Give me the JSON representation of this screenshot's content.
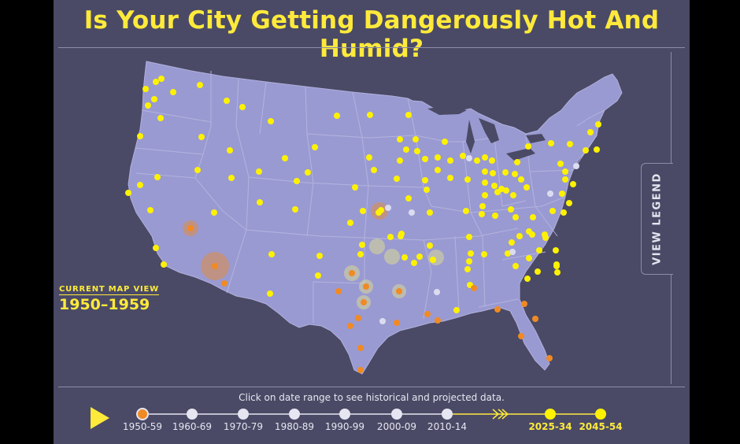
{
  "header": {
    "title": "Is Your City Getting Dangerously Hot And Humid?"
  },
  "legend_toggle": {
    "label": "VIEW LEGEND"
  },
  "current_view": {
    "label": "CURRENT MAP VIEW",
    "value": "1950–1959"
  },
  "timeline": {
    "instruction": "Click on date range to see historical and projected data.",
    "ranges": [
      {
        "label": "1950-59",
        "state": "selected"
      },
      {
        "label": "1960-69",
        "state": "historical"
      },
      {
        "label": "1970-79",
        "state": "historical"
      },
      {
        "label": "1980-89",
        "state": "historical"
      },
      {
        "label": "1990-99",
        "state": "historical"
      },
      {
        "label": "2000-09",
        "state": "historical"
      },
      {
        "label": "2010-14",
        "state": "historical"
      },
      {
        "label": "2025-34",
        "state": "projected"
      },
      {
        "label": "2045-54",
        "state": "projected"
      }
    ]
  },
  "colors": {
    "background": "#4a4a66",
    "land": "#9a9ad2",
    "state_border": "#b6b6e0",
    "accent_yellow": "#ffea3b",
    "dot_yellow": "#fff200",
    "dot_orange": "#f08a24",
    "dot_white": "#dcdcf0"
  },
  "icons": {
    "play": "play-icon",
    "arrow": "double-chevron-icon"
  }
}
